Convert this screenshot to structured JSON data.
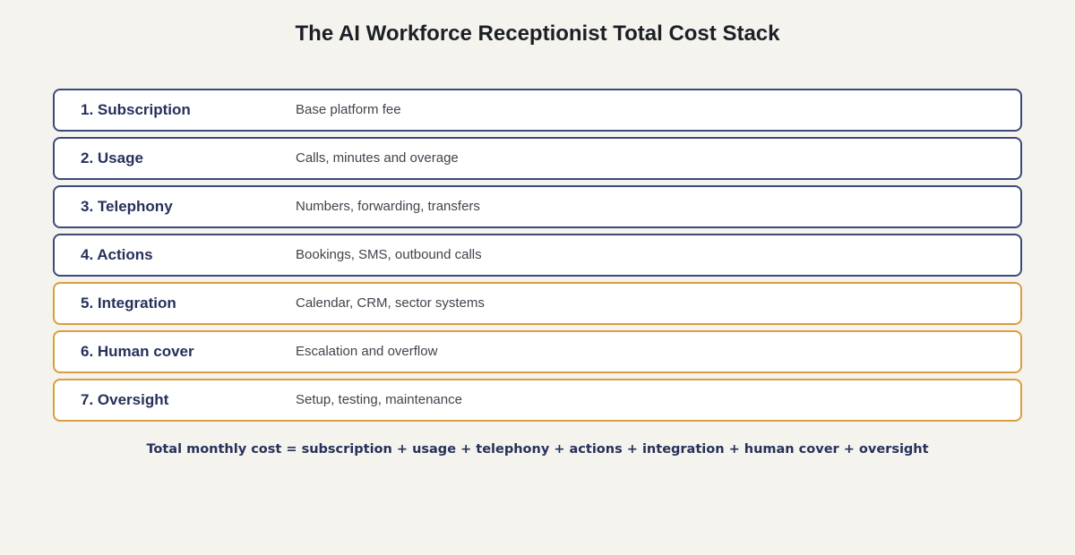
{
  "title": "The AI Workforce Receptionist Total Cost Stack",
  "colors": {
    "primary_border": "#3b4a7a",
    "accent_border": "#db9d41",
    "label_text": "#26315a",
    "background": "#f5f3ee"
  },
  "layers": [
    {
      "label": "1. Subscription",
      "description": "Base platform fee",
      "group": "primary"
    },
    {
      "label": "2. Usage",
      "description": "Calls, minutes and overage",
      "group": "primary"
    },
    {
      "label": "3. Telephony",
      "description": "Numbers, forwarding, transfers",
      "group": "primary"
    },
    {
      "label": "4. Actions",
      "description": "Bookings, SMS, outbound calls",
      "group": "primary"
    },
    {
      "label": "5. Integration",
      "description": "Calendar, CRM, sector systems",
      "group": "accent"
    },
    {
      "label": "6. Human cover",
      "description": "Escalation and overflow",
      "group": "accent"
    },
    {
      "label": "7. Oversight",
      "description": "Setup, testing, maintenance",
      "group": "accent"
    }
  ],
  "formula": "Total monthly cost = subscription + usage + telephony + actions + integration + human cover + oversight"
}
